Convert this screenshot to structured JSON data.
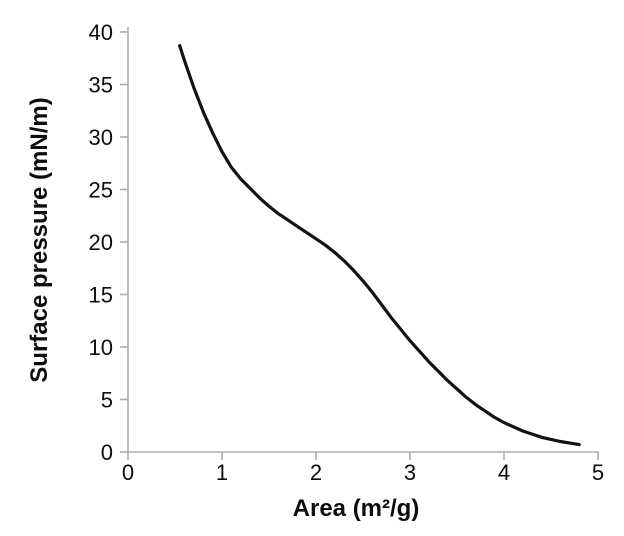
{
  "figure": {
    "background_color": "#ffffff"
  },
  "chart_data": {
    "type": "line",
    "title": "",
    "xlabel": "Area (m²/g)",
    "ylabel": "Surface pressure (mN/m)",
    "xlim": [
      0,
      5
    ],
    "ylim": [
      0,
      40
    ],
    "xticks": [
      0,
      1,
      2,
      3,
      4,
      5
    ],
    "yticks": [
      0,
      5,
      10,
      15,
      20,
      25,
      30,
      35,
      40
    ],
    "grid": false,
    "legend_position": "none",
    "axis_color": "#adadad",
    "tick_label_color": "#0d0d0d",
    "series": [
      {
        "name": "surface-pressure-isotherm",
        "color": "#121212",
        "line_width": 3.2,
        "x": [
          0.55,
          0.6,
          0.7,
          0.8,
          0.9,
          1.0,
          1.1,
          1.2,
          1.3,
          1.4,
          1.5,
          1.6,
          1.7,
          1.8,
          1.9,
          2.0,
          2.1,
          2.2,
          2.3,
          2.4,
          2.5,
          2.6,
          2.7,
          2.8,
          2.9,
          3.0,
          3.1,
          3.2,
          3.3,
          3.4,
          3.5,
          3.6,
          3.7,
          3.8,
          3.9,
          4.0,
          4.1,
          4.2,
          4.3,
          4.4,
          4.5,
          4.6,
          4.7,
          4.8
        ],
        "y": [
          38.7,
          37.3,
          34.7,
          32.4,
          30.4,
          28.6,
          27.1,
          26.0,
          25.1,
          24.2,
          23.4,
          22.7,
          22.1,
          21.5,
          20.9,
          20.3,
          19.7,
          19.0,
          18.2,
          17.3,
          16.3,
          15.2,
          14.0,
          12.8,
          11.7,
          10.6,
          9.6,
          8.6,
          7.7,
          6.8,
          6.0,
          5.2,
          4.5,
          3.9,
          3.3,
          2.8,
          2.4,
          2.0,
          1.7,
          1.4,
          1.2,
          1.0,
          0.85,
          0.7
        ]
      }
    ]
  }
}
